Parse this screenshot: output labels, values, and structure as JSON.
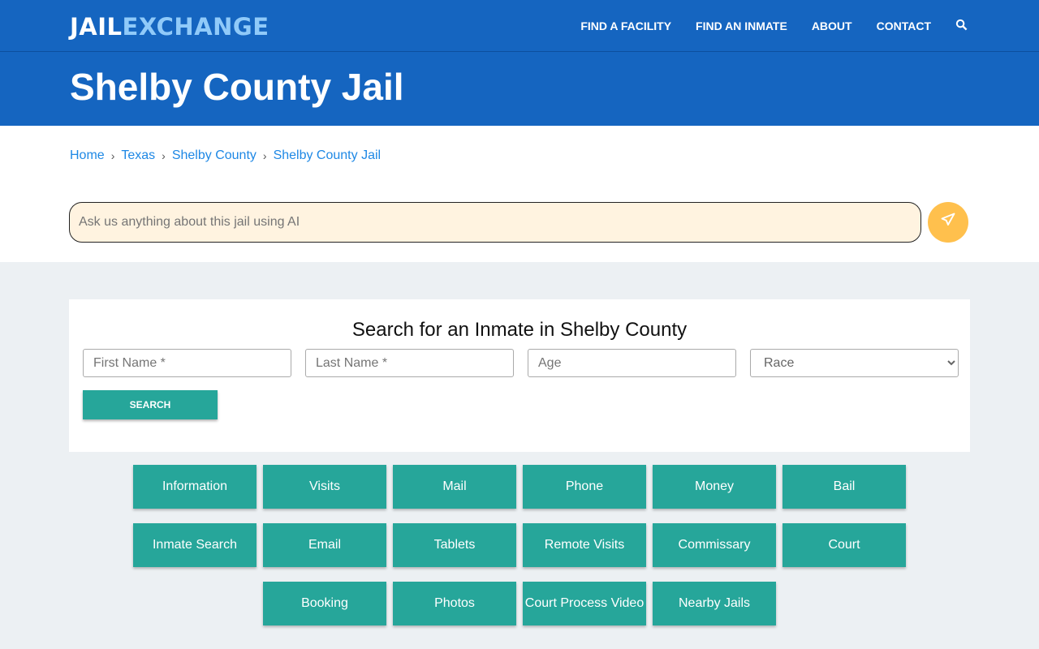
{
  "logo": {
    "part1": "JAIL",
    "part2": "EXCHANGE"
  },
  "nav": [
    "FIND A FACILITY",
    "FIND AN INMATE",
    "ABOUT",
    "CONTACT"
  ],
  "title": "Shelby County Jail",
  "breadcrumb": [
    "Home",
    "Texas",
    "Shelby County",
    "Shelby County Jail"
  ],
  "ai": {
    "placeholder": "Ask us anything about this jail using AI"
  },
  "search": {
    "heading": "Search for an Inmate in Shelby County",
    "first": "First Name *",
    "last": "Last Name *",
    "age": "Age",
    "race": "Race",
    "button": "SEARCH"
  },
  "links": [
    "Information",
    "Visits",
    "Mail",
    "Phone",
    "Money",
    "Bail",
    "Inmate Search",
    "Email",
    "Tablets",
    "Remote Visits",
    "Commissary",
    "Court",
    "Booking",
    "Photos",
    "Court Process Video",
    "Nearby Jails"
  ],
  "colors": {
    "header": "#1565c0",
    "accent": "#26a69a",
    "send": "#ffc04d"
  }
}
